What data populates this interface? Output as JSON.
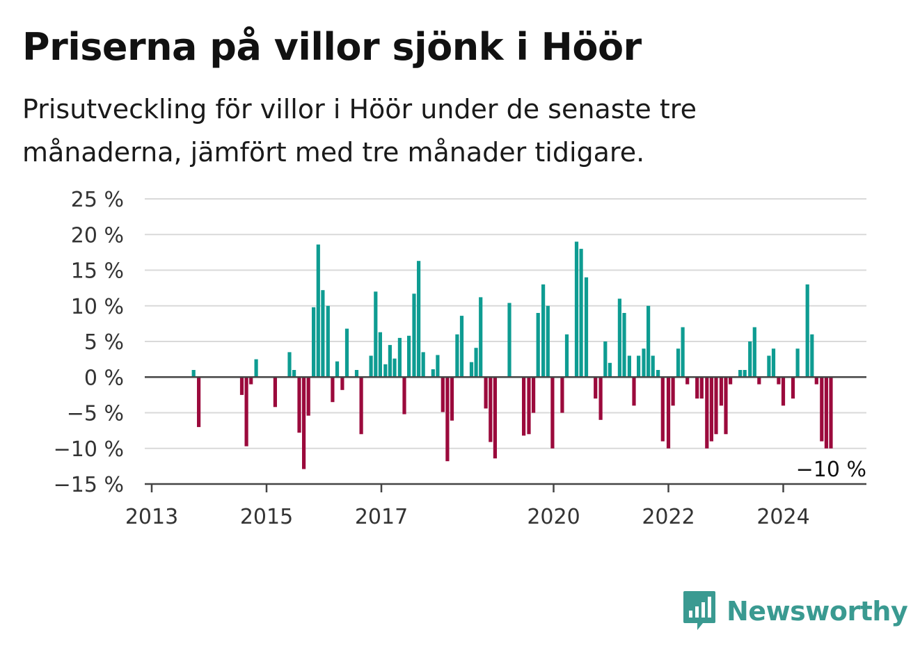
{
  "title": "Priserna på villor sjönk i Höör",
  "subtitle": "Prisutveckling för villor i Höör under de senaste tre månaderna, jämfört med tre månader tidigare.",
  "brand": {
    "name": "Newsworthy",
    "icon": "bar-chart-speech-bubble-icon"
  },
  "colors": {
    "positive": "#0e9c92",
    "negative": "#9b0a3c",
    "zero_line": "#444444",
    "grid": "#d9d9d9"
  },
  "chart_data": {
    "type": "bar",
    "ylim": [
      -15,
      25
    ],
    "yticks": [
      -15,
      -10,
      -5,
      0,
      5,
      10,
      15,
      20,
      25
    ],
    "ytick_labels": [
      "−15 %",
      "−10 %",
      "−5 %",
      "0 %",
      "5 %",
      "10 %",
      "15 %",
      "20 %",
      "25 %"
    ],
    "xticks": [
      2013,
      2015,
      2017,
      2020,
      2022,
      2024
    ],
    "xtick_labels": [
      "2013",
      "2015",
      "2017",
      "2020",
      "2022",
      "2024"
    ],
    "xlim": [
      2013,
      2025.5
    ],
    "x_unit": "decimal year",
    "grid": true,
    "last_value_label": "−10 %",
    "points": [
      [
        2013.73,
        1
      ],
      [
        2013.82,
        -7
      ],
      [
        2014.57,
        -2.5
      ],
      [
        2014.65,
        -9.7
      ],
      [
        2014.73,
        -1
      ],
      [
        2014.82,
        2.5
      ],
      [
        2015.15,
        -4.2
      ],
      [
        2015.4,
        3.5
      ],
      [
        2015.48,
        1
      ],
      [
        2015.57,
        -7.8
      ],
      [
        2015.65,
        -12.9
      ],
      [
        2015.73,
        -5.4
      ],
      [
        2015.82,
        9.8
      ],
      [
        2015.9,
        18.6
      ],
      [
        2015.98,
        12.2
      ],
      [
        2016.07,
        10
      ],
      [
        2016.15,
        -3.5
      ],
      [
        2016.23,
        2.2
      ],
      [
        2016.32,
        -1.8
      ],
      [
        2016.4,
        6.8
      ],
      [
        2016.57,
        1
      ],
      [
        2016.65,
        -8
      ],
      [
        2016.82,
        3
      ],
      [
        2016.9,
        12
      ],
      [
        2016.98,
        6.3
      ],
      [
        2017.07,
        1.8
      ],
      [
        2017.15,
        4.5
      ],
      [
        2017.23,
        2.6
      ],
      [
        2017.32,
        5.5
      ],
      [
        2017.4,
        -5.2
      ],
      [
        2017.48,
        5.8
      ],
      [
        2017.57,
        11.7
      ],
      [
        2017.65,
        16.3
      ],
      [
        2017.73,
        3.5
      ],
      [
        2017.9,
        1.1
      ],
      [
        2017.98,
        3.1
      ],
      [
        2018.07,
        -4.9
      ],
      [
        2018.15,
        -11.8
      ],
      [
        2018.23,
        -6.1
      ],
      [
        2018.32,
        6
      ],
      [
        2018.4,
        8.6
      ],
      [
        2018.57,
        2.1
      ],
      [
        2018.65,
        4.1
      ],
      [
        2018.73,
        11.2
      ],
      [
        2018.82,
        -4.4
      ],
      [
        2018.9,
        -9.1
      ],
      [
        2018.98,
        -11.4
      ],
      [
        2019.23,
        10.4
      ],
      [
        2019.48,
        -8.2
      ],
      [
        2019.57,
        -8
      ],
      [
        2019.65,
        -5
      ],
      [
        2019.73,
        9
      ],
      [
        2019.82,
        13
      ],
      [
        2019.9,
        10
      ],
      [
        2019.98,
        -10
      ],
      [
        2020.15,
        -5
      ],
      [
        2020.23,
        6
      ],
      [
        2020.4,
        19
      ],
      [
        2020.48,
        18
      ],
      [
        2020.57,
        14
      ],
      [
        2020.73,
        -3
      ],
      [
        2020.82,
        -6
      ],
      [
        2020.9,
        5
      ],
      [
        2020.98,
        2
      ],
      [
        2021.15,
        11
      ],
      [
        2021.23,
        9
      ],
      [
        2021.32,
        3
      ],
      [
        2021.4,
        -4
      ],
      [
        2021.48,
        3
      ],
      [
        2021.57,
        4
      ],
      [
        2021.65,
        10
      ],
      [
        2021.73,
        3
      ],
      [
        2021.82,
        1
      ],
      [
        2021.9,
        -9
      ],
      [
        2022.0,
        -10
      ],
      [
        2022.08,
        -4
      ],
      [
        2022.17,
        4
      ],
      [
        2022.25,
        7
      ],
      [
        2022.33,
        -1
      ],
      [
        2022.5,
        -3
      ],
      [
        2022.58,
        -3
      ],
      [
        2022.67,
        -10
      ],
      [
        2022.75,
        -9
      ],
      [
        2022.83,
        -8
      ],
      [
        2022.92,
        -4
      ],
      [
        2023.0,
        -8
      ],
      [
        2023.08,
        -1
      ],
      [
        2023.25,
        1
      ],
      [
        2023.33,
        1
      ],
      [
        2023.42,
        5
      ],
      [
        2023.5,
        7
      ],
      [
        2023.58,
        -1
      ],
      [
        2023.75,
        3
      ],
      [
        2023.83,
        4
      ],
      [
        2023.92,
        -1
      ],
      [
        2024.0,
        -4
      ],
      [
        2024.17,
        -3
      ],
      [
        2024.25,
        4
      ],
      [
        2024.42,
        13
      ],
      [
        2024.5,
        6
      ],
      [
        2024.58,
        -1
      ],
      [
        2024.67,
        -9
      ],
      [
        2024.75,
        -10
      ],
      [
        2024.83,
        -10
      ]
    ]
  }
}
